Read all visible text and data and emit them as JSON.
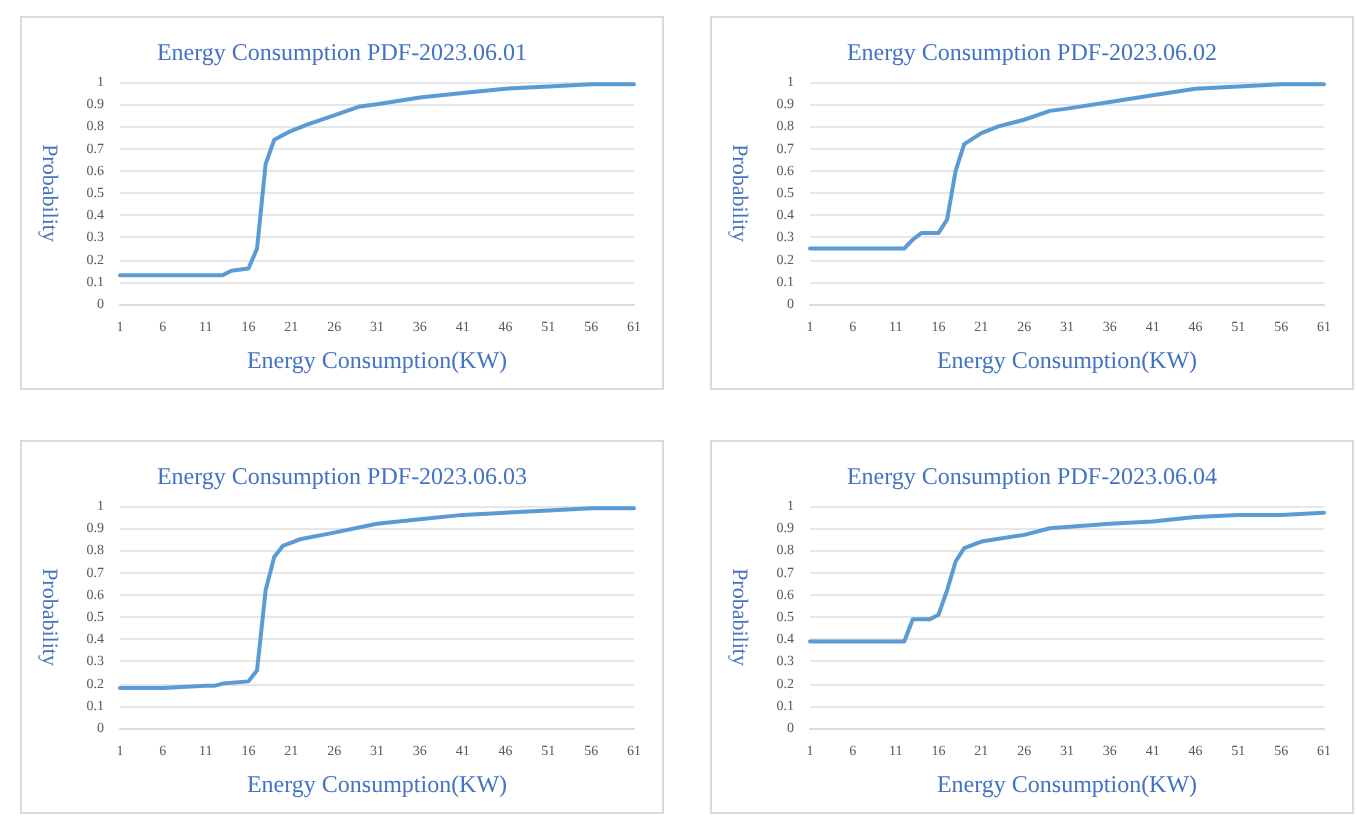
{
  "chart_data": [
    {
      "type": "line",
      "title": "Energy Consumption PDF-2023.06.01",
      "xlabel": "Energy Consumption(KW)",
      "ylabel": "Probability",
      "xlim": [
        1,
        61
      ],
      "xticks": [
        1,
        6,
        11,
        16,
        21,
        26,
        31,
        36,
        41,
        46,
        51,
        56,
        61
      ],
      "ylim": [
        0,
        1
      ],
      "yticks": [
        0,
        0.1,
        0.2,
        0.3,
        0.4,
        0.5,
        0.6,
        0.7,
        0.8,
        0.9,
        1
      ],
      "grid": "y",
      "marker": "none",
      "line_style": "solid",
      "series": [
        {
          "color": "#5b9bd5",
          "x": [
            1,
            6,
            11,
            13,
            14,
            16,
            17,
            18,
            19,
            21,
            23,
            26,
            29,
            31,
            36,
            41,
            46,
            51,
            56,
            61
          ],
          "values": [
            0.13,
            0.13,
            0.13,
            0.13,
            0.15,
            0.16,
            0.25,
            0.63,
            0.74,
            0.78,
            0.81,
            0.85,
            0.89,
            0.9,
            0.93,
            0.95,
            0.97,
            0.98,
            0.99,
            0.99
          ]
        }
      ]
    },
    {
      "type": "line",
      "title": "Energy Consumption PDF-2023.06.02",
      "xlabel": "Energy Consumption(KW)",
      "ylabel": "Probability",
      "xlim": [
        1,
        61
      ],
      "xticks": [
        1,
        6,
        11,
        16,
        21,
        26,
        31,
        36,
        41,
        46,
        51,
        56,
        61
      ],
      "ylim": [
        0,
        1
      ],
      "yticks": [
        0,
        0.1,
        0.2,
        0.3,
        0.4,
        0.5,
        0.6,
        0.7,
        0.8,
        0.9,
        1
      ],
      "grid": "y",
      "marker": "none",
      "line_style": "solid",
      "series": [
        {
          "color": "#5b9bd5",
          "x": [
            1,
            6,
            11,
            12,
            13,
            14,
            16,
            17,
            18,
            19,
            21,
            23,
            26,
            29,
            31,
            36,
            41,
            46,
            51,
            56,
            61
          ],
          "values": [
            0.25,
            0.25,
            0.25,
            0.25,
            0.29,
            0.32,
            0.32,
            0.38,
            0.6,
            0.72,
            0.77,
            0.8,
            0.83,
            0.87,
            0.88,
            0.91,
            0.94,
            0.97,
            0.98,
            0.99,
            0.99
          ]
        }
      ]
    },
    {
      "type": "line",
      "title": "Energy Consumption PDF-2023.06.03",
      "xlabel": "Energy Consumption(KW)",
      "ylabel": "Probability",
      "xlim": [
        1,
        61
      ],
      "xticks": [
        1,
        6,
        11,
        16,
        21,
        26,
        31,
        36,
        41,
        46,
        51,
        56,
        61
      ],
      "ylim": [
        0,
        1
      ],
      "yticks": [
        0,
        0.1,
        0.2,
        0.3,
        0.4,
        0.5,
        0.6,
        0.7,
        0.8,
        0.9,
        1
      ],
      "grid": "y",
      "marker": "none",
      "line_style": "solid",
      "series": [
        {
          "color": "#5b9bd5",
          "x": [
            1,
            6,
            11,
            12,
            13,
            16,
            17,
            18,
            19,
            20,
            22,
            26,
            31,
            36,
            41,
            46,
            51,
            56,
            61
          ],
          "values": [
            0.18,
            0.18,
            0.19,
            0.19,
            0.2,
            0.21,
            0.26,
            0.62,
            0.77,
            0.82,
            0.85,
            0.88,
            0.92,
            0.94,
            0.96,
            0.97,
            0.98,
            0.99,
            0.99
          ]
        }
      ]
    },
    {
      "type": "line",
      "title": "Energy Consumption PDF-2023.06.04",
      "xlabel": "Energy Consumption(KW)",
      "ylabel": "Probability",
      "xlim": [
        1,
        61
      ],
      "xticks": [
        1,
        6,
        11,
        16,
        21,
        26,
        31,
        36,
        41,
        46,
        51,
        56,
        61
      ],
      "ylim": [
        0,
        1
      ],
      "yticks": [
        0,
        0.1,
        0.2,
        0.3,
        0.4,
        0.5,
        0.6,
        0.7,
        0.8,
        0.9,
        1
      ],
      "grid": "y",
      "marker": "none",
      "line_style": "solid",
      "series": [
        {
          "color": "#5b9bd5",
          "x": [
            1,
            6,
            11,
            12,
            13,
            15,
            16,
            17,
            18,
            19,
            21,
            26,
            29,
            36,
            41,
            46,
            51,
            56,
            61
          ],
          "values": [
            0.39,
            0.39,
            0.39,
            0.39,
            0.49,
            0.49,
            0.51,
            0.62,
            0.75,
            0.81,
            0.84,
            0.87,
            0.9,
            0.92,
            0.93,
            0.95,
            0.96,
            0.96,
            0.97
          ]
        }
      ]
    }
  ]
}
